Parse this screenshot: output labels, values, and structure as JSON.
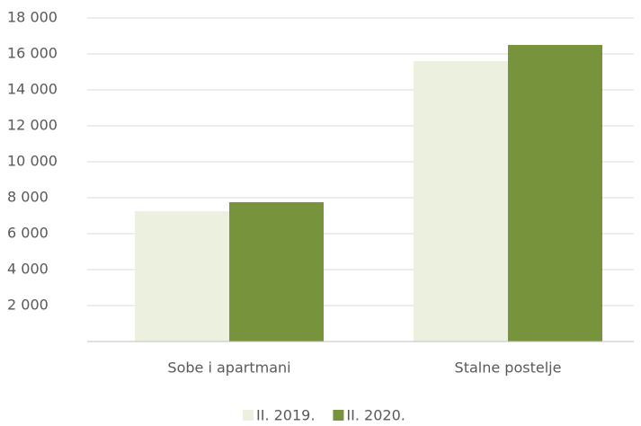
{
  "chart_data": {
    "type": "bar",
    "categories": [
      "Sobe i apartmani",
      "Stalne postelje"
    ],
    "series": [
      {
        "name": "II. 2019.",
        "color": "#ebf1de",
        "values": [
          7250,
          15600
        ]
      },
      {
        "name": "II. 2020.",
        "color": "#77933c",
        "values": [
          7750,
          16500
        ]
      }
    ],
    "ylim": [
      0,
      18000
    ],
    "yticks": [
      {
        "value": 2000,
        "label": "2 000"
      },
      {
        "value": 4000,
        "label": "4 000"
      },
      {
        "value": 6000,
        "label": "6 000"
      },
      {
        "value": 8000,
        "label": "8 000"
      },
      {
        "value": 10000,
        "label": "10 000"
      },
      {
        "value": 12000,
        "label": "12 000"
      },
      {
        "value": 14000,
        "label": "14 000"
      },
      {
        "value": 16000,
        "label": "16 000"
      },
      {
        "value": 18000,
        "label": "18 000"
      }
    ],
    "grid": true,
    "legend": "bottom"
  }
}
